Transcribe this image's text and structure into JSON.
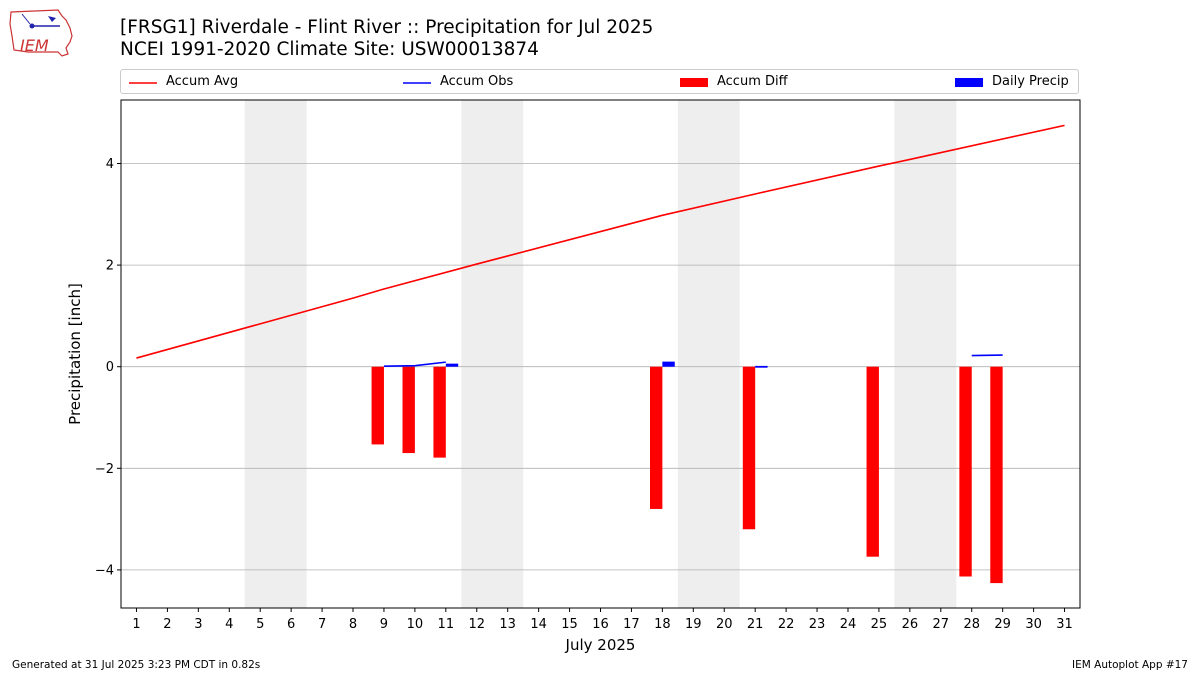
{
  "header": {
    "title_line1": "[FRSG1] Riverdale - Flint River :: Precipitation for Jul 2025",
    "title_line2": "NCEI 1991-2020 Climate Site: USW00013874"
  },
  "logo": {
    "text": "IEM"
  },
  "footer": {
    "generated": "Generated at 31 Jul 2025 3:23 PM CDT in 0.82s",
    "app": "IEM Autoplot App #17"
  },
  "colors": {
    "accum_avg": "#ff0000",
    "accum_obs": "#0000ff",
    "accum_diff": "#ff0000",
    "daily_precip": "#0000ff",
    "weekend_band": "#eeeeee",
    "grid": "#b0b0b0"
  },
  "chart_data": {
    "type": "bar",
    "xlabel": "July 2025",
    "ylabel": "Precipitation [inch]",
    "xlim": [
      0.5,
      31.5
    ],
    "ylim": [
      -4.75,
      5.25
    ],
    "yticks": [
      -4,
      -2,
      0,
      2,
      4
    ],
    "ytick_labels": [
      "−4",
      "−2",
      "0",
      "2",
      "4"
    ],
    "xticks": [
      1,
      2,
      3,
      4,
      5,
      6,
      7,
      8,
      9,
      10,
      11,
      12,
      13,
      14,
      15,
      16,
      17,
      18,
      19,
      20,
      21,
      22,
      23,
      24,
      25,
      26,
      27,
      28,
      29,
      30,
      31
    ],
    "grid": "horizontal",
    "legend_position": "top",
    "weekend_bands": [
      [
        5,
        6
      ],
      [
        12,
        13
      ],
      [
        19,
        20
      ],
      [
        26,
        27
      ]
    ],
    "legend": [
      "Accum Avg",
      "Accum Obs",
      "Accum Diff",
      "Daily Precip"
    ],
    "series": [
      {
        "name": "Accum Avg",
        "type": "line",
        "x": [
          1,
          8,
          9,
          12,
          17,
          18,
          21,
          25,
          26,
          31
        ],
        "y": [
          0.17,
          1.35,
          1.53,
          2.02,
          2.82,
          2.98,
          3.4,
          3.95,
          4.08,
          4.75
        ]
      },
      {
        "name": "Accum Obs",
        "type": "segments",
        "segments": [
          {
            "x": [
              9,
              10,
              11
            ],
            "y": [
              0.01,
              0.02,
              0.09
            ]
          },
          {
            "x": [
              21,
              21.4
            ],
            "y": [
              0.0,
              0.0
            ]
          },
          {
            "x": [
              28,
              29
            ],
            "y": [
              0.22,
              0.23
            ]
          }
        ]
      },
      {
        "name": "Accum Diff",
        "type": "bar",
        "x": [
          9,
          10,
          11,
          18,
          21,
          25,
          28,
          29
        ],
        "y": [
          -1.53,
          -1.7,
          -1.79,
          -2.8,
          -3.2,
          -3.74,
          -4.13,
          -4.26
        ]
      },
      {
        "name": "Daily Precip",
        "type": "bar",
        "x": [
          11,
          18,
          21
        ],
        "y": [
          0.06,
          0.1,
          0.01
        ]
      }
    ]
  }
}
